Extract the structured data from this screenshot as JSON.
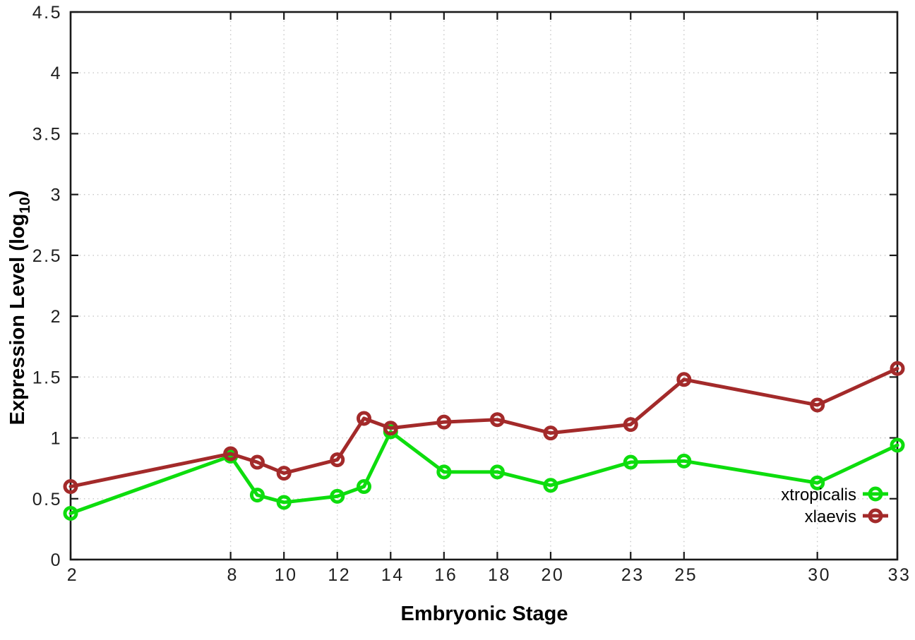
{
  "chart_data": {
    "type": "line",
    "title": "",
    "xlabel": "Embryonic Stage",
    "ylabel": "Expression Level (log10)",
    "ylabel_parts": {
      "main": "Expression Level (log",
      "sub": "10",
      "close": ")"
    },
    "xlim": [
      2,
      33
    ],
    "ylim": [
      0,
      4.5
    ],
    "x_ticks": [
      2,
      8,
      10,
      12,
      14,
      16,
      18,
      20,
      23,
      25,
      30,
      33
    ],
    "y_ticks": [
      0,
      0.5,
      1,
      1.5,
      2,
      2.5,
      3,
      3.5,
      4,
      4.5
    ],
    "y_tick_labels": [
      "0",
      "0.5",
      "1",
      "1.5",
      "2",
      "2.5",
      "3",
      "3.5",
      "4",
      "4.5"
    ],
    "grid": true,
    "legend_position": "inside-bottom-right",
    "series": [
      {
        "name": "xtropicalis",
        "color": "#0ddd0d",
        "x": [
          2,
          8,
          9,
          10,
          12,
          13,
          14,
          16,
          18,
          20,
          23,
          25,
          30,
          33
        ],
        "y": [
          0.38,
          0.85,
          0.53,
          0.47,
          0.52,
          0.6,
          1.05,
          0.72,
          0.72,
          0.61,
          0.8,
          0.81,
          0.63,
          0.94
        ]
      },
      {
        "name": "xlaevis",
        "color": "#a32a2a",
        "x": [
          2,
          8,
          9,
          10,
          12,
          13,
          14,
          16,
          18,
          20,
          23,
          25,
          30,
          33
        ],
        "y": [
          0.6,
          0.87,
          0.8,
          0.71,
          0.82,
          1.16,
          1.08,
          1.13,
          1.15,
          1.04,
          1.11,
          1.48,
          1.27,
          1.57
        ]
      }
    ],
    "colors": {
      "grid": "#c6c6c6",
      "axis": "#1a1a1a",
      "background": "#ffffff"
    }
  }
}
